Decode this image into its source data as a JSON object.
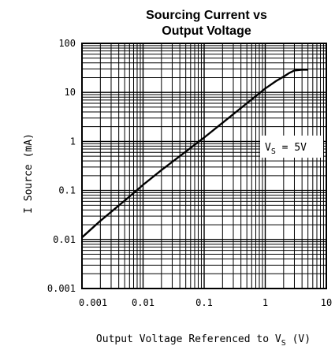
{
  "chart_data": {
    "type": "line",
    "title_line1": "Sourcing Current vs",
    "title_line2": "Output Voltage",
    "xlabel_main": "Output Voltage Referenced to V",
    "xlabel_sub": "S",
    "xlabel_unit": " (V)",
    "ylabel": "I Source (mA)",
    "x_scale": "log",
    "y_scale": "log",
    "xlim": [
      0.001,
      10
    ],
    "ylim": [
      0.001,
      100
    ],
    "x_ticks": [
      "0.001",
      "0.01",
      "0.1",
      "1",
      "10"
    ],
    "y_ticks": [
      "100",
      "10",
      "1",
      "0.1",
      "0.01",
      "0.001"
    ],
    "grid": true,
    "annotation_main": "V",
    "annotation_sub": "S",
    "annotation_tail": " = 5V",
    "series": [
      {
        "x": [
          0.001,
          0.002,
          0.005,
          0.01,
          0.02,
          0.05,
          0.1,
          0.2,
          0.5,
          1,
          1.5,
          2,
          2.5,
          3,
          4,
          5
        ],
        "y": [
          0.011,
          0.024,
          0.062,
          0.13,
          0.26,
          0.62,
          1.2,
          2.4,
          6,
          12,
          17,
          21,
          25,
          28,
          29,
          29
        ]
      }
    ]
  }
}
